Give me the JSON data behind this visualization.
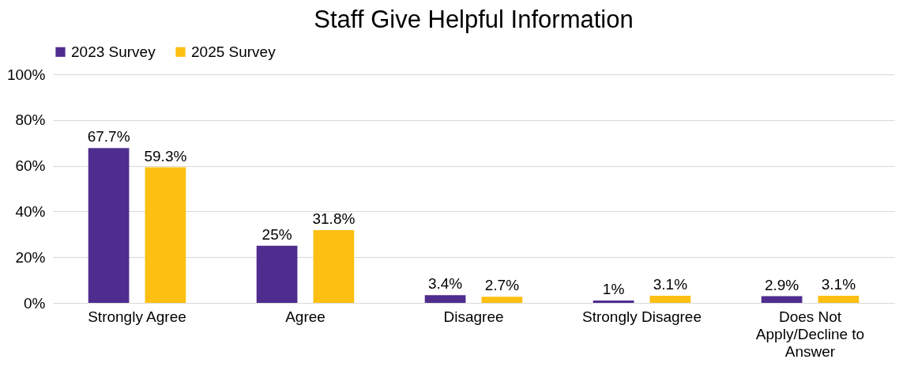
{
  "chart_data": {
    "type": "bar",
    "title": "Staff Give Helpful Information",
    "categories": [
      "Strongly Agree",
      "Agree",
      "Disagree",
      "Strongly Disagree",
      "Does Not Apply/Decline to Answer"
    ],
    "series": [
      {
        "name": "2023 Survey",
        "color": "#4f2d8f",
        "values": [
          67.7,
          25,
          3.4,
          1,
          2.9
        ],
        "value_labels": [
          "67.7%",
          "25%",
          "3.4%",
          "1%",
          "2.9%"
        ]
      },
      {
        "name": "2025 Survey",
        "color": "#fdbf11",
        "values": [
          59.3,
          31.8,
          2.7,
          3.1,
          3.1
        ],
        "value_labels": [
          "59.3%",
          "31.8%",
          "2.7%",
          "3.1%",
          "3.1%"
        ]
      }
    ],
    "ylim": [
      0,
      100
    ],
    "yticks": [
      {
        "value": 0,
        "label": "0%"
      },
      {
        "value": 20,
        "label": "20%"
      },
      {
        "value": 40,
        "label": "40%"
      },
      {
        "value": 60,
        "label": "60%"
      },
      {
        "value": 80,
        "label": "80%"
      },
      {
        "value": 100,
        "label": "100%"
      }
    ],
    "grid": "y",
    "legend": "top"
  }
}
